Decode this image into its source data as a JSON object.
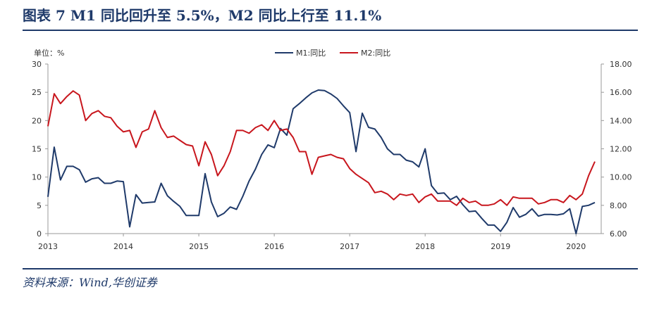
{
  "figure": {
    "title": "图表 7   M1 同比回升至 5.5%，M2 同比上行至 11.1%",
    "source": "资料来源：Wind,华创证券"
  },
  "colors": {
    "m1": "#1f3a6a",
    "m2": "#c8161d",
    "axis": "#999999",
    "text": "#333333"
  },
  "chart_data": {
    "type": "line",
    "unit_label": "单位：%",
    "y_left": {
      "min": 0,
      "max": 30,
      "ticks": [
        "0",
        "5",
        "10",
        "15",
        "20",
        "25",
        "30"
      ]
    },
    "y_right": {
      "min": 6,
      "max": 18,
      "ticks": [
        "6.00",
        "8.00",
        "10.00",
        "12.00",
        "14.00",
        "16.00",
        "18.00"
      ]
    },
    "x_ticks": [
      "2013",
      "2014",
      "2015",
      "2016",
      "2017",
      "2018",
      "2019",
      "2020"
    ],
    "x_start": "2013-01",
    "legend_position": "top-center",
    "grid": false,
    "series": [
      {
        "name": "M1:同比",
        "axis": "left",
        "color": "#1f3a6a",
        "values": [
          6.5,
          15.3,
          9.5,
          11.9,
          11.9,
          11.3,
          9.1,
          9.7,
          9.9,
          8.9,
          8.9,
          9.3,
          9.2,
          1.2,
          6.9,
          5.4,
          5.5,
          5.6,
          8.9,
          6.7,
          5.7,
          4.8,
          3.2,
          3.2,
          3.2,
          10.6,
          5.6,
          3.0,
          3.6,
          4.7,
          4.3,
          6.6,
          9.3,
          11.4,
          14.0,
          15.7,
          15.2,
          18.6,
          17.4,
          22.1,
          23.0,
          24.0,
          24.9,
          25.4,
          25.3,
          24.7,
          23.9,
          22.6,
          21.4,
          14.5,
          21.3,
          18.8,
          18.5,
          17.0,
          15.0,
          14.0,
          14.0,
          13.0,
          12.7,
          11.8,
          15.0,
          8.5,
          7.1,
          7.2,
          6.0,
          6.6,
          5.1,
          3.9,
          4.0,
          2.7,
          1.5,
          1.5,
          0.4,
          2.0,
          4.6,
          2.9,
          3.4,
          4.4,
          3.1,
          3.4,
          3.4,
          3.3,
          3.5,
          4.4,
          0.0,
          4.8,
          5.0,
          5.5
        ],
        "last_value_note": "5.5"
      },
      {
        "name": "M2:同比",
        "axis": "right",
        "color": "#c8161d",
        "values": [
          13.6,
          15.9,
          15.2,
          15.7,
          16.1,
          15.8,
          14.0,
          14.5,
          14.7,
          14.3,
          14.2,
          13.6,
          13.2,
          13.3,
          12.1,
          13.2,
          13.4,
          14.7,
          13.5,
          12.8,
          12.9,
          12.6,
          12.3,
          12.2,
          10.8,
          12.5,
          11.6,
          10.1,
          10.8,
          11.8,
          13.3,
          13.3,
          13.1,
          13.5,
          13.7,
          13.3,
          14.0,
          13.3,
          13.4,
          12.8,
          11.8,
          11.8,
          10.2,
          11.4,
          11.5,
          11.6,
          11.4,
          11.3,
          10.6,
          10.2,
          9.9,
          9.6,
          8.9,
          9.0,
          8.8,
          8.4,
          8.8,
          8.7,
          8.8,
          8.2,
          8.6,
          8.8,
          8.3,
          8.3,
          8.3,
          8.0,
          8.5,
          8.2,
          8.3,
          8.0,
          8.0,
          8.1,
          8.4,
          8.0,
          8.6,
          8.5,
          8.5,
          8.5,
          8.1,
          8.2,
          8.4,
          8.4,
          8.2,
          8.7,
          8.4,
          8.8,
          10.1,
          11.1
        ],
        "last_value_note": "11.1"
      }
    ]
  }
}
